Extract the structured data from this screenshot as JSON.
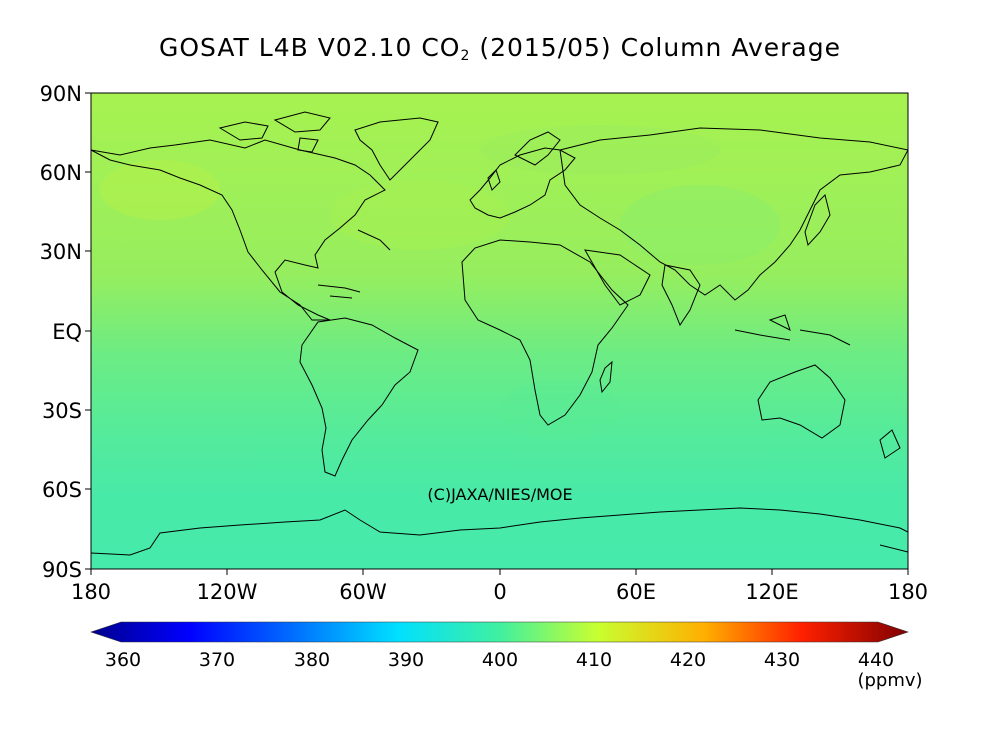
{
  "title_main": "GOSAT L4B V02.10 CO",
  "title_sub": "2",
  "title_rest": " (2015/05) Column Average",
  "credit": "(C)JAXA/NIES/MOE",
  "lat_labels": [
    "90N",
    "60N",
    "30N",
    "EQ",
    "30S",
    "60S",
    "90S"
  ],
  "lon_labels": [
    "180",
    "120W",
    "60W",
    "0",
    "60E",
    "120E",
    "180"
  ],
  "colorbar": {
    "ticks": [
      "360",
      "370",
      "380",
      "390",
      "400",
      "410",
      "420",
      "430",
      "440"
    ],
    "unit": "(ppmv)",
    "min": 360,
    "max": 440,
    "colors": [
      "#000080",
      "#0000ff",
      "#0080ff",
      "#00e5ff",
      "#40f0a0",
      "#b0ff40",
      "#ffc000",
      "#ff3000",
      "#800000"
    ]
  },
  "field": {
    "lat_bands": [
      90,
      60,
      30,
      0,
      -30,
      -60,
      -90
    ],
    "band_values": [
      403.5,
      402.5,
      402.0,
      399.5,
      397.5,
      396.5,
      396.5
    ]
  }
}
